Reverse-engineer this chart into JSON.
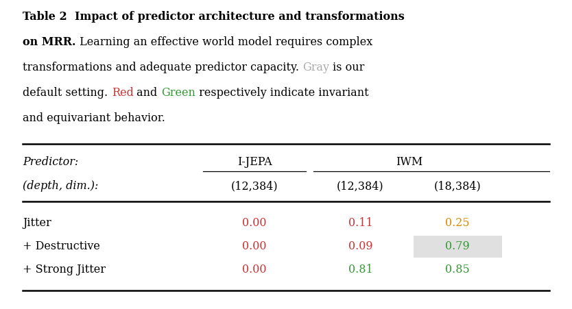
{
  "caption_lines": [
    [
      {
        "text": "Table 2  ",
        "bold": true,
        "color": "#000000"
      },
      {
        "text": "Impact of predictor architecture and transformations",
        "bold": true,
        "color": "#000000"
      }
    ],
    [
      {
        "text": "on MRR.",
        "bold": true,
        "color": "#000000"
      },
      {
        "text": " Learning an effective world model requires complex",
        "bold": false,
        "color": "#000000"
      }
    ],
    [
      {
        "text": "transformations and adequate predictor capacity. ",
        "bold": false,
        "color": "#000000"
      },
      {
        "text": "Gray",
        "bold": false,
        "color": "#aaaaaa"
      },
      {
        "text": " is our",
        "bold": false,
        "color": "#000000"
      }
    ],
    [
      {
        "text": "default setting. ",
        "bold": false,
        "color": "#000000"
      },
      {
        "text": "Red",
        "bold": false,
        "color": "#cc3333"
      },
      {
        "text": " and ",
        "bold": false,
        "color": "#000000"
      },
      {
        "text": "Green",
        "bold": false,
        "color": "#339933"
      },
      {
        "text": " respectively indicate invariant",
        "bold": false,
        "color": "#000000"
      }
    ],
    [
      {
        "text": "and equivariant behavior.",
        "bold": false,
        "color": "#000000"
      }
    ]
  ],
  "col_headers_row1": [
    "Predictor:",
    "I-JEPA",
    "IWM"
  ],
  "col_headers_row2": [
    "(depth, dim.):",
    "(12,384)",
    "(12,384)",
    "(18,384)"
  ],
  "rows": [
    {
      "label": "Jitter",
      "values": [
        "0.00",
        "0.11",
        "0.25"
      ],
      "colors": [
        "#cc3333",
        "#cc3333",
        "#dd8800"
      ],
      "highlight": [
        false,
        false,
        false
      ]
    },
    {
      "label": "+ Destructive",
      "values": [
        "0.00",
        "0.09",
        "0.79"
      ],
      "colors": [
        "#cc3333",
        "#cc3333",
        "#339933"
      ],
      "highlight": [
        false,
        false,
        true
      ]
    },
    {
      "label": "+ Strong Jitter",
      "values": [
        "0.00",
        "0.81",
        "0.85"
      ],
      "colors": [
        "#cc3333",
        "#339933",
        "#339933"
      ],
      "highlight": [
        false,
        false,
        false
      ]
    }
  ],
  "highlight_color": "#e0e0e0",
  "background_color": "#ffffff",
  "fig_width": 8.34,
  "fig_height": 4.51,
  "caption_fontsize": 11.5,
  "table_fontsize": 11.5
}
